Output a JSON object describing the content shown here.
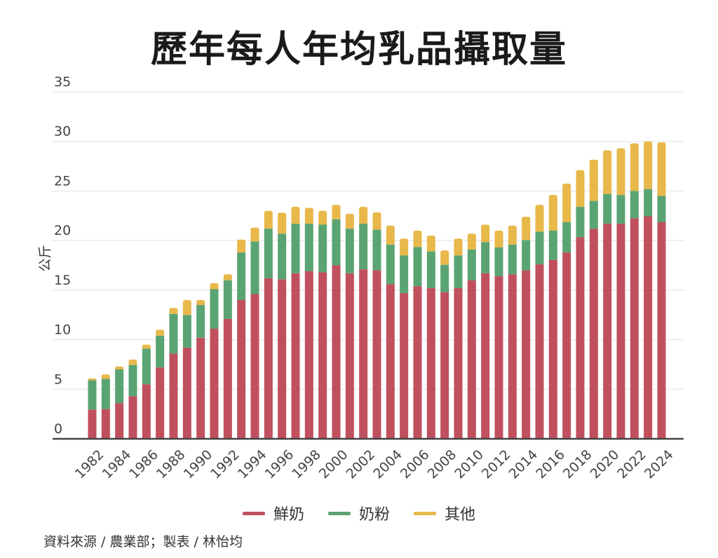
{
  "title": "歷年每人年均乳品攝取量",
  "source": "資料來源 / 農業部；製表 / 林怡均",
  "chart_data": {
    "type": "bar",
    "stacked": true,
    "title": "歷年每人年均乳品攝取量",
    "xlabel": "",
    "ylabel": "公斤",
    "ylim": [
      0,
      35
    ],
    "yticks": [
      0,
      5,
      10,
      15,
      20,
      25,
      30,
      35
    ],
    "grid": true,
    "legend_position": "bottom",
    "categories": [
      "1982",
      "1983",
      "1984",
      "1985",
      "1986",
      "1987",
      "1988",
      "1989",
      "1990",
      "1991",
      "1992",
      "1993",
      "1994",
      "1995",
      "1996",
      "1997",
      "1998",
      "1999",
      "2000",
      "2001",
      "2002",
      "2003",
      "2004",
      "2005",
      "2006",
      "2007",
      "2008",
      "2009",
      "2010",
      "2011",
      "2012",
      "2013",
      "2014",
      "2015",
      "2016",
      "2017",
      "2018",
      "2019",
      "2020",
      "2021",
      "2022",
      "2023",
      "2024"
    ],
    "xtick_labels": [
      "1982",
      "1984",
      "1986",
      "1988",
      "1990",
      "1992",
      "1994",
      "1996",
      "1998",
      "2000",
      "2002",
      "2004",
      "2006",
      "2008",
      "2010",
      "2012",
      "2014",
      "2016",
      "2018",
      "2020",
      "2022",
      "2024"
    ],
    "series": [
      {
        "name": "鮮奶",
        "color": "#c0505e",
        "values": [
          2.95,
          3.0,
          3.6,
          4.3,
          5.5,
          7.2,
          8.6,
          9.2,
          10.2,
          11.1,
          12.1,
          14.0,
          14.6,
          16.2,
          16.1,
          16.7,
          16.9,
          16.8,
          17.5,
          16.7,
          17.1,
          17.0,
          15.6,
          14.7,
          15.4,
          15.2,
          14.8,
          15.2,
          16.0,
          16.7,
          16.4,
          16.6,
          17.0,
          17.6,
          18.05,
          18.8,
          20.35,
          21.2,
          21.7,
          21.7,
          22.25,
          22.45,
          21.85
        ]
      },
      {
        "name": "奶粉",
        "color": "#5aa473",
        "values": [
          2.95,
          3.05,
          3.4,
          3.15,
          3.6,
          3.2,
          4.0,
          3.3,
          3.3,
          4.0,
          3.9,
          4.8,
          5.3,
          5.0,
          4.6,
          5.0,
          4.8,
          4.8,
          4.65,
          4.5,
          4.6,
          4.1,
          4.0,
          3.8,
          3.95,
          3.7,
          2.75,
          3.3,
          3.1,
          3.15,
          2.9,
          3.0,
          3.05,
          3.3,
          2.95,
          3.05,
          3.05,
          2.8,
          3.0,
          2.9,
          2.75,
          2.75,
          2.65
        ]
      },
      {
        "name": "其他",
        "color": "#e8b84a",
        "values": [
          0.2,
          0.45,
          0.3,
          0.55,
          0.4,
          0.6,
          0.6,
          1.5,
          0.5,
          0.6,
          0.6,
          1.3,
          1.4,
          1.8,
          2.1,
          1.7,
          1.6,
          1.4,
          1.45,
          1.5,
          1.7,
          1.75,
          1.9,
          1.7,
          1.65,
          1.6,
          1.45,
          1.7,
          1.6,
          1.75,
          1.7,
          1.9,
          2.35,
          2.7,
          3.6,
          3.9,
          3.7,
          4.15,
          4.4,
          4.7,
          4.8,
          4.8,
          5.4
        ]
      }
    ]
  }
}
